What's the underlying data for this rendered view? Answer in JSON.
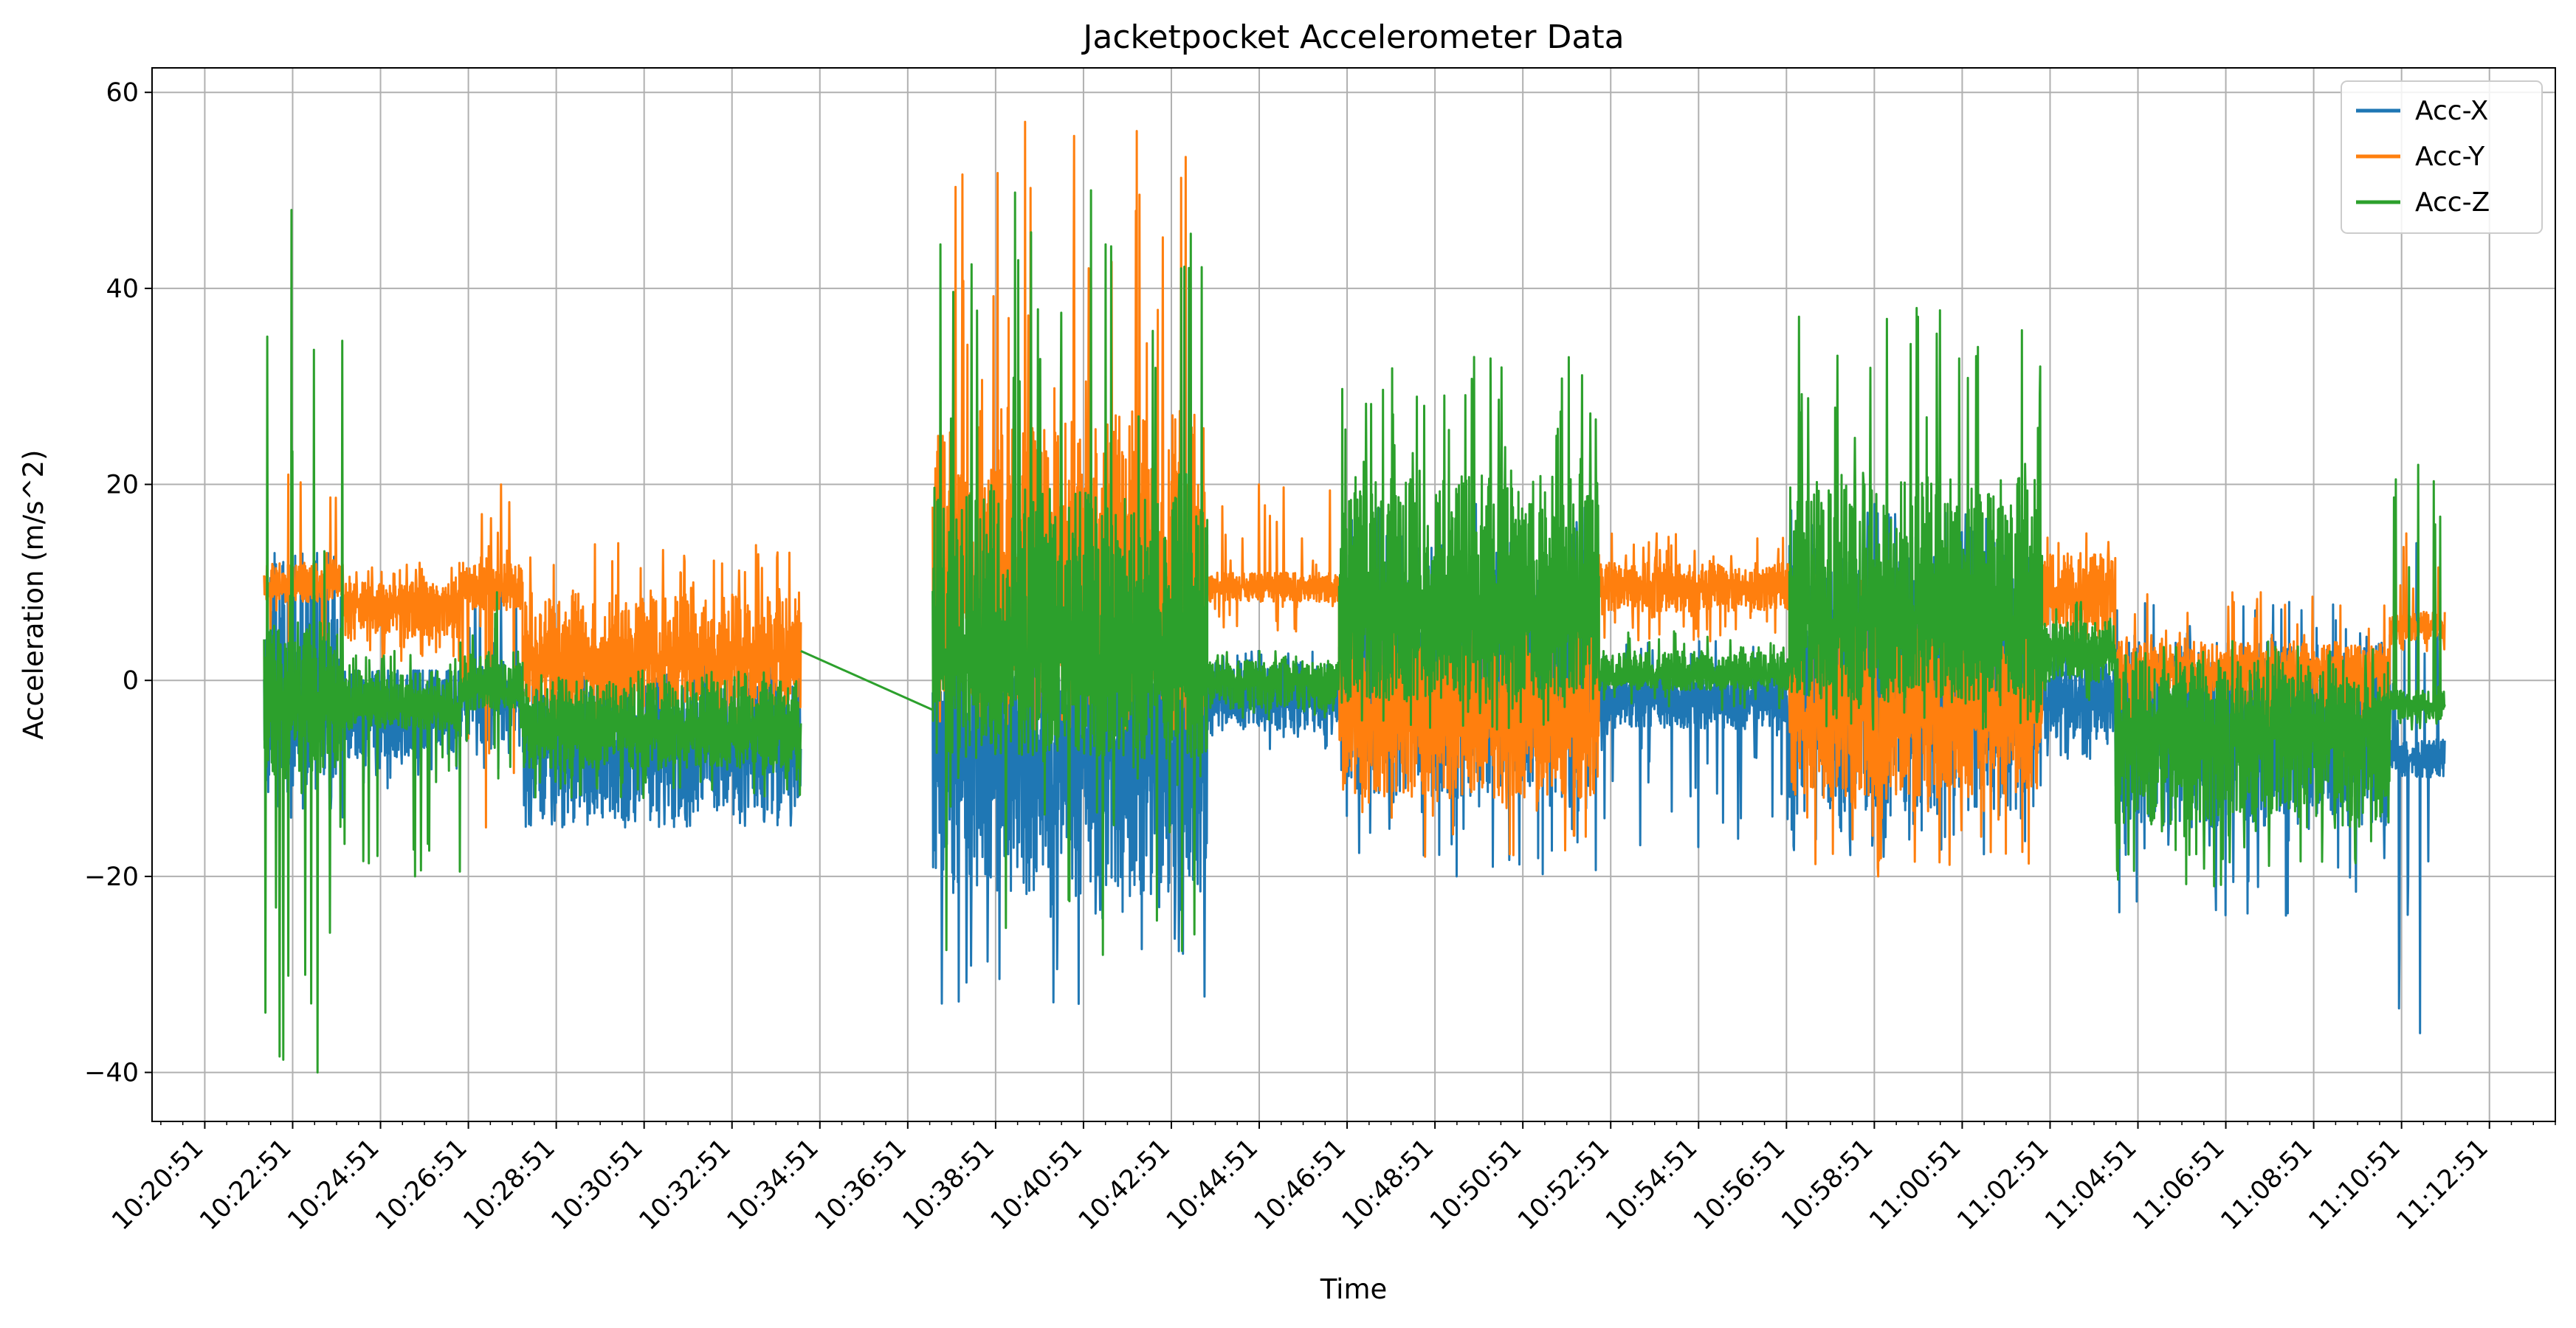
{
  "chart_data": {
    "type": "line",
    "title": "Jacketpocket Accelerometer Data",
    "xlabel": "Time",
    "ylabel": "Acceleration (m/s^2)",
    "x_ticks": [
      "10:20:51",
      "10:22:51",
      "10:24:51",
      "10:26:51",
      "10:28:51",
      "10:30:51",
      "10:32:51",
      "10:34:51",
      "10:36:51",
      "10:38:51",
      "10:40:51",
      "10:42:51",
      "10:44:51",
      "10:46:51",
      "10:48:51",
      "10:50:51",
      "10:52:51",
      "10:54:51",
      "10:56:51",
      "10:58:51",
      "11:00:51",
      "11:02:51",
      "11:04:51",
      "11:06:51",
      "11:08:51",
      "11:10:51",
      "11:12:51"
    ],
    "y_ticks": [
      -40,
      -20,
      0,
      20,
      40,
      60
    ],
    "y_tick_labels": [
      "−40",
      "−20",
      "0",
      "20",
      "40",
      "60"
    ],
    "xlim": [
      "10:19:39",
      "11:14:21"
    ],
    "ylim": [
      -45,
      62.5
    ],
    "grid": true,
    "legend_position": "top-right",
    "series": [
      {
        "name": "Acc-X",
        "color": "#1f77b4",
        "segments": [
          {
            "start": "10:22:12",
            "end": "10:24:00",
            "mean": -3,
            "lo": -12,
            "hi": 12,
            "spike_lo": -14,
            "spike_hi": 13
          },
          {
            "start": "10:24:00",
            "end": "10:26:40",
            "mean": -4,
            "lo": -8,
            "hi": 1,
            "spike_lo": -11,
            "spike_hi": 1
          },
          {
            "start": "10:26:40",
            "end": "10:28:05",
            "mean": -1,
            "lo": -7,
            "hi": 2,
            "spike_lo": -9,
            "spike_hi": 11
          },
          {
            "start": "10:28:05",
            "end": "10:34:25",
            "mean": -7,
            "lo": -14,
            "hi": 1,
            "spike_lo": -15,
            "spike_hi": 2
          },
          {
            "start": "10:37:25",
            "end": "10:43:40",
            "mean": -7,
            "lo": -22,
            "hi": 3,
            "spike_lo": -33,
            "spike_hi": 5
          },
          {
            "start": "10:43:40",
            "end": "10:46:40",
            "mean": -2,
            "lo": -5,
            "hi": 2,
            "spike_lo": -7,
            "spike_hi": 3
          },
          {
            "start": "10:46:40",
            "end": "10:52:35",
            "mean": 0,
            "lo": -12,
            "hi": 15,
            "spike_lo": -20,
            "spike_hi": 18
          },
          {
            "start": "10:52:35",
            "end": "10:56:55",
            "mean": -2,
            "lo": -5,
            "hi": 1,
            "spike_lo": -17,
            "spike_hi": 4
          },
          {
            "start": "10:56:55",
            "end": "11:02:40",
            "mean": -1,
            "lo": -14,
            "hi": 14,
            "spike_lo": -18,
            "spike_hi": 18
          },
          {
            "start": "11:02:40",
            "end": "11:04:20",
            "mean": -2,
            "lo": -6,
            "hi": 2,
            "spike_lo": -8,
            "spike_hi": 4
          },
          {
            "start": "11:04:20",
            "end": "11:10:35",
            "mean": -6,
            "lo": -15,
            "hi": 4,
            "spike_lo": -24,
            "spike_hi": 8
          },
          {
            "start": "11:10:35",
            "end": "11:11:50",
            "mean": -8,
            "lo": -10,
            "hi": -6,
            "spike_lo": -36,
            "spike_hi": 14
          }
        ]
      },
      {
        "name": "Acc-Y",
        "color": "#ff7f0e",
        "segments": [
          {
            "start": "10:22:12",
            "end": "10:24:00",
            "mean": 9.5,
            "lo": 8,
            "hi": 12,
            "spike_lo": 3,
            "spike_hi": 21
          },
          {
            "start": "10:24:00",
            "end": "10:26:40",
            "mean": 8,
            "lo": 4,
            "hi": 10,
            "spike_lo": 2,
            "spike_hi": 12
          },
          {
            "start": "10:26:40",
            "end": "10:28:05",
            "mean": 9.5,
            "lo": 7,
            "hi": 12,
            "spike_lo": -15,
            "spike_hi": 20
          },
          {
            "start": "10:28:05",
            "end": "10:34:25",
            "mean": 2,
            "lo": -3,
            "hi": 9,
            "spike_lo": -5,
            "spike_hi": 14
          },
          {
            "start": "10:37:25",
            "end": "10:43:40",
            "mean": 8,
            "lo": -2,
            "hi": 28,
            "spike_lo": -5,
            "spike_hi": 57
          },
          {
            "start": "10:43:40",
            "end": "10:46:40",
            "mean": 9.5,
            "lo": 8,
            "hi": 11,
            "spike_lo": 5,
            "spike_hi": 20
          },
          {
            "start": "10:46:40",
            "end": "10:52:35",
            "mean": -4,
            "lo": -12,
            "hi": 5,
            "spike_lo": -18,
            "spike_hi": 8
          },
          {
            "start": "10:52:35",
            "end": "10:56:55",
            "mean": 9.5,
            "lo": 7,
            "hi": 12,
            "spike_lo": 4,
            "spike_hi": 15
          },
          {
            "start": "10:56:55",
            "end": "11:02:40",
            "mean": -4,
            "lo": -12,
            "hi": 6,
            "spike_lo": -20,
            "spike_hi": 12
          },
          {
            "start": "11:02:40",
            "end": "11:04:20",
            "mean": 9,
            "lo": 5,
            "hi": 13,
            "spike_lo": 3,
            "spike_hi": 15
          },
          {
            "start": "11:04:20",
            "end": "11:10:35",
            "mean": 1,
            "lo": -3,
            "hi": 4,
            "spike_lo": -8,
            "spike_hi": 9
          },
          {
            "start": "11:10:35",
            "end": "11:11:50",
            "mean": 5.5,
            "lo": 4,
            "hi": 7,
            "spike_lo": 3,
            "spike_hi": 15
          }
        ]
      },
      {
        "name": "Acc-Z",
        "color": "#2ca02c",
        "segments": [
          {
            "start": "10:22:12",
            "end": "10:24:00",
            "mean": -2,
            "lo": -10,
            "hi": 6,
            "spike_lo": -40,
            "spike_hi": 48
          },
          {
            "start": "10:24:00",
            "end": "10:26:40",
            "mean": -3,
            "lo": -5,
            "hi": 1,
            "spike_lo": -20,
            "spike_hi": 3
          },
          {
            "start": "10:26:40",
            "end": "10:28:05",
            "mean": -1,
            "lo": -3,
            "hi": 3,
            "spike_lo": -10,
            "spike_hi": 9
          },
          {
            "start": "10:28:05",
            "end": "10:34:25",
            "mean": -5,
            "lo": -9,
            "hi": 0,
            "spike_lo": -12,
            "spike_hi": 1
          },
          {
            "start": "10:37:25",
            "end": "10:43:40",
            "mean": 2,
            "lo": -8,
            "hi": 20,
            "spike_lo": -28,
            "spike_hi": 50
          },
          {
            "start": "10:43:40",
            "end": "10:46:40",
            "mean": 0,
            "lo": -3,
            "hi": 2,
            "spike_lo": -4,
            "spike_hi": 3
          },
          {
            "start": "10:46:40",
            "end": "10:52:35",
            "mean": 6,
            "lo": -2,
            "hi": 21,
            "spike_lo": -5,
            "spike_hi": 33
          },
          {
            "start": "10:52:35",
            "end": "10:56:55",
            "mean": 0.5,
            "lo": -1,
            "hi": 3,
            "spike_lo": -3,
            "spike_hi": 5
          },
          {
            "start": "10:56:55",
            "end": "11:02:40",
            "mean": 6,
            "lo": -2,
            "hi": 21,
            "spike_lo": -5,
            "spike_hi": 38
          },
          {
            "start": "11:02:40",
            "end": "11:04:20",
            "mean": 3,
            "lo": 0,
            "hi": 6,
            "spike_lo": -2,
            "spike_hi": 8
          },
          {
            "start": "11:04:20",
            "end": "11:10:35",
            "mean": -5,
            "lo": -15,
            "hi": 2,
            "spike_lo": -21,
            "spike_hi": 4
          },
          {
            "start": "11:10:35",
            "end": "11:11:50",
            "mean": -2.5,
            "lo": -4,
            "hi": -1,
            "spike_lo": -5,
            "spike_hi": 22
          }
        ]
      }
    ]
  }
}
